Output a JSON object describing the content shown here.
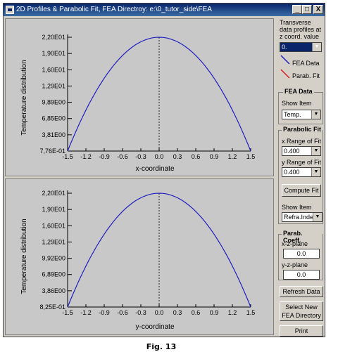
{
  "window": {
    "title": "2D Profiles & Parabolic Fit, FEA Directroy: e:\\0_tutor_side\\FEA",
    "buttons": [
      "_",
      "□",
      "X"
    ]
  },
  "plots": [
    {
      "xlabel": "x-coordinate",
      "ylabel": "Temperature distribution",
      "yticks": [
        "2,20E01",
        "1,90E01",
        "1,60E01",
        "1,29E01",
        "9,89E00",
        "6,85E00",
        "3,81E00",
        "7,76E-01"
      ],
      "xticks": [
        "-1.5",
        "-1.2",
        "-0.9",
        "-0.6",
        "-0.3",
        "0.0",
        "0.3",
        "0.6",
        "0.9",
        "1.2",
        "1.5"
      ]
    },
    {
      "xlabel": "y-coordinate",
      "ylabel": "Temperature distribution",
      "yticks": [
        "2,20E01",
        "1,90E01",
        "1,60E01",
        "1,29E01",
        "9,92E00",
        "6,89E00",
        "3,86E00",
        "8,25E-01"
      ],
      "xticks": [
        "-1.5",
        "-1.2",
        "-0.9",
        "-0.6",
        "-0.3",
        "0.0",
        "0.3",
        "0.6",
        "0.9",
        "1.2",
        "1.5"
      ]
    }
  ],
  "chart_data": [
    {
      "type": "line",
      "xlabel": "x-coordinate",
      "ylabel": "Temperature distribution",
      "xlim": [
        -1.5,
        1.5
      ],
      "ylim": [
        0.776,
        22.0
      ],
      "series": [
        {
          "x": [
            -1.5,
            -1.2,
            -0.9,
            -0.6,
            -0.3,
            0.0,
            0.3,
            0.6,
            0.9,
            1.2,
            1.5
          ],
          "values": [
            0.776,
            8.42,
            14.36,
            18.61,
            21.16,
            22.0,
            21.16,
            18.61,
            14.36,
            8.42,
            0.776
          ]
        }
      ]
    },
    {
      "type": "line",
      "xlabel": "y-coordinate",
      "ylabel": "Temperature distribution",
      "xlim": [
        -1.5,
        1.5
      ],
      "ylim": [
        0.825,
        22.0
      ],
      "series": [
        {
          "x": [
            -1.5,
            -1.2,
            -0.9,
            -0.6,
            -0.3,
            0.0,
            0.3,
            0.6,
            0.9,
            1.2,
            1.5
          ],
          "values": [
            0.825,
            8.45,
            14.38,
            18.61,
            21.15,
            22.0,
            21.15,
            18.61,
            14.38,
            8.45,
            0.825
          ]
        }
      ]
    }
  ],
  "panel": {
    "transverse_label1": "Transverse",
    "transverse_label2": "data profiles at",
    "transverse_label3": "z coord. value",
    "z_select": "0.",
    "legend_fea": "FEA Data",
    "legend_parab": "Parab. Fit",
    "fea_group": "FEA Data",
    "fea_show_item": "Show Item",
    "fea_item_value": "Temp.",
    "parab_group": "Parabolic Fit",
    "x_range_label": "x Range of Fit",
    "x_range_value": "0.400",
    "y_range_label": "y Range of Fit",
    "y_range_value": "0.400",
    "compute_fit": "Compute Fit",
    "show_item2": "Show Item",
    "show_item2_value": "Refra.Index",
    "coeff_group": "Parab. Coeff.",
    "xz_plane": "x-z-plane",
    "xz_value": "0.0",
    "yz_plane": "y-z-plane",
    "yz_value": "0.0",
    "refresh": "Refresh Data",
    "select_new1": "Select New",
    "select_new2": "FEA Directory",
    "print": "Print"
  },
  "colors": {
    "curve": "#2020c0",
    "parab": "#d02020"
  },
  "caption": "Fig. 13"
}
